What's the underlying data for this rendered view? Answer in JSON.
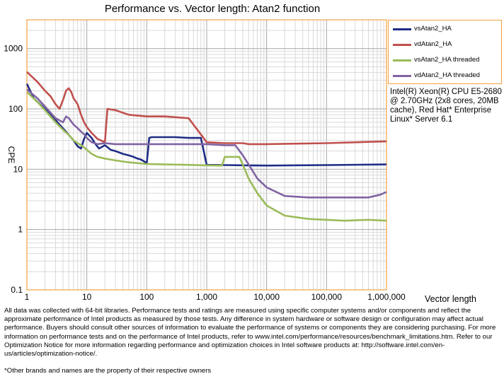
{
  "chart_data": {
    "type": "line",
    "title": "Performance vs. Vector length: Atan2 function",
    "xlabel": "Vector length",
    "ylabel": "CPE",
    "x_scale": "log",
    "y_scale": "log",
    "xlim": [
      1,
      1000000
    ],
    "ylim": [
      0.1,
      3000
    ],
    "x_ticks": [
      "1",
      "10",
      "100",
      "1,000",
      "10,000",
      "100,000",
      "1,000,000"
    ],
    "y_ticks": [
      "1000",
      "100",
      "10",
      "1",
      "0.1"
    ],
    "grid": true,
    "legend_position": "top-right",
    "series": [
      {
        "name": "vsAtan2_HA",
        "color": "#1f2d86",
        "x": [
          1,
          1.3,
          1.8,
          2.5,
          3.5,
          4.5,
          6,
          7,
          8,
          9,
          10,
          12,
          14,
          16,
          20,
          25,
          30,
          40,
          50,
          60,
          70,
          80,
          90,
          100,
          110,
          120,
          150,
          200,
          300,
          500,
          800,
          1000,
          2000,
          5000,
          10000,
          100000,
          1000000
        ],
        "y": [
          260,
          150,
          110,
          80,
          55,
          42,
          30,
          24,
          22,
          32,
          40,
          33,
          26,
          22,
          25,
          21,
          20,
          18,
          17,
          16,
          15,
          14.5,
          13.5,
          12.5,
          33,
          34,
          34,
          34,
          34,
          33,
          33,
          11.8,
          11.7,
          11.6,
          11.5,
          11.7,
          12
        ]
      },
      {
        "name": "vdAtan2_HA",
        "color": "#c0504d",
        "x": [
          1,
          1.5,
          2,
          2.5,
          3,
          3.5,
          4,
          4.5,
          5,
          5.5,
          6,
          7,
          8,
          9,
          10,
          12,
          15,
          20,
          22,
          30,
          50,
          100,
          200,
          500,
          1000,
          2000,
          3000,
          4000,
          5000,
          10000,
          100000,
          1000000
        ],
        "y": [
          410,
          280,
          200,
          160,
          120,
          100,
          140,
          200,
          220,
          190,
          150,
          120,
          80,
          60,
          50,
          40,
          32,
          28,
          100,
          95,
          80,
          75,
          75,
          70,
          28,
          27,
          27,
          27,
          26,
          26,
          27,
          29
        ]
      },
      {
        "name": "vsAtan2_HA threaded",
        "color": "#9bbb59",
        "x": [
          1,
          1.5,
          2,
          3,
          4,
          5,
          6,
          7,
          8,
          9,
          10,
          12,
          15,
          20,
          30,
          50,
          100,
          200,
          500,
          1000,
          1500,
          1800,
          2000,
          3000,
          3500,
          4000,
          5000,
          7000,
          10000,
          20000,
          50000,
          100000,
          200000,
          500000,
          1000000
        ],
        "y": [
          190,
          130,
          95,
          60,
          45,
          37,
          30,
          27,
          25,
          23,
          21,
          18,
          16,
          15,
          14,
          13,
          12.2,
          12,
          11.8,
          11.6,
          11.5,
          11.5,
          16,
          16,
          16,
          12,
          7,
          4,
          2.5,
          1.7,
          1.5,
          1.45,
          1.4,
          1.45,
          1.4
        ]
      },
      {
        "name": "vdAtan2_HA threaded",
        "color": "#8064a2",
        "x": [
          1,
          1.5,
          2,
          3,
          4,
          4.5,
          5,
          6,
          7,
          8,
          9,
          10,
          12,
          15,
          20,
          30,
          50,
          100,
          200,
          500,
          1000,
          2000,
          3000,
          4000,
          5000,
          7000,
          10000,
          20000,
          50000,
          100000,
          500000,
          800000,
          1000000
        ],
        "y": [
          210,
          150,
          110,
          70,
          60,
          75,
          70,
          55,
          48,
          42,
          38,
          33,
          28,
          26,
          27,
          26,
          26,
          26,
          26,
          26,
          26,
          25,
          25,
          17,
          12,
          7,
          5,
          3.6,
          3.4,
          3.4,
          3.4,
          3.8,
          4.2
        ]
      }
    ]
  },
  "cpu_text": "Intel(R) Xeon(R) CPU E5-2680 @ 2.70GHz (2x8 cores, 20MB cache), Red Hat* Enterprise Linux* Server 6.1",
  "disclaimer": "All data was collected with 64-bit libraries. Performance tests and ratings are measured using specific computer systems and/or components and reflect the approximate performance of Intel products as measured by those tests. Any difference in system hardware or software design or configuration may affect actual performance. Buyers should consult other sources of information to evaluate the performance of systems or components they are considering purchasing. For more information on performance tests and on the performance of Intel products, refer to www.intel.com/performance/resources/benchmark_limitations.htm. Refer to our Optimization Notice for more information regarding performance and optimization choices in Intel software products at: http://software.intel.com/en-us/articles/optimization-notice/.",
  "footnote": "*Other brands and names are the property of their respective owners"
}
